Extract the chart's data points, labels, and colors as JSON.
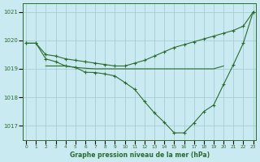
{
  "title": "Graphe pression niveau de la mer (hPa)",
  "bg_color": "#c8eaf0",
  "grid_color": "#9ec8d4",
  "line_color": "#2d6b2d",
  "ylim": [
    1016.5,
    1021.3
  ],
  "yticks": [
    1017,
    1018,
    1019,
    1020,
    1021
  ],
  "xlim": [
    -0.3,
    23.3
  ],
  "xticks": [
    0,
    1,
    2,
    3,
    4,
    5,
    6,
    7,
    8,
    9,
    10,
    11,
    12,
    13,
    14,
    15,
    16,
    17,
    18,
    19,
    20,
    21,
    22,
    23
  ],
  "lineA_x": [
    0,
    1,
    2,
    3,
    4,
    5,
    6,
    7,
    8,
    9,
    10,
    11,
    12,
    13,
    14,
    15,
    16,
    17,
    18,
    19,
    20,
    21,
    22,
    23
  ],
  "lineA_y": [
    1019.9,
    1019.9,
    1019.5,
    1019.45,
    1019.35,
    1019.3,
    1019.25,
    1019.2,
    1019.15,
    1019.1,
    1019.1,
    1019.2,
    1019.3,
    1019.45,
    1019.6,
    1019.75,
    1019.85,
    1019.95,
    1020.05,
    1020.15,
    1020.25,
    1020.35,
    1020.5,
    1021.0
  ],
  "lineB_x": [
    2,
    3,
    4,
    5,
    6,
    7,
    8,
    9,
    10,
    11,
    12,
    13,
    14,
    15,
    16,
    17,
    18,
    19,
    20
  ],
  "lineB_y": [
    1019.1,
    1019.1,
    1019.1,
    1019.05,
    1019.02,
    1019.0,
    1019.0,
    1019.0,
    1019.0,
    1019.0,
    1019.0,
    1019.0,
    1019.0,
    1019.0,
    1019.0,
    1019.0,
    1019.0,
    1019.0,
    1019.1
  ],
  "lineC_x": [
    0,
    1,
    2,
    3,
    4,
    5,
    6,
    7,
    8,
    9,
    10,
    11,
    12,
    13,
    14,
    15,
    16,
    17,
    18,
    19,
    20,
    21,
    22,
    23
  ],
  "lineC_y": [
    1019.9,
    1019.9,
    1019.35,
    1019.25,
    1019.1,
    1019.05,
    1018.88,
    1018.87,
    1018.82,
    1018.75,
    1018.52,
    1018.28,
    1017.85,
    1017.45,
    1017.12,
    1016.75,
    1016.75,
    1017.1,
    1017.5,
    1017.73,
    1018.45,
    1019.15,
    1019.9,
    1021.0
  ]
}
